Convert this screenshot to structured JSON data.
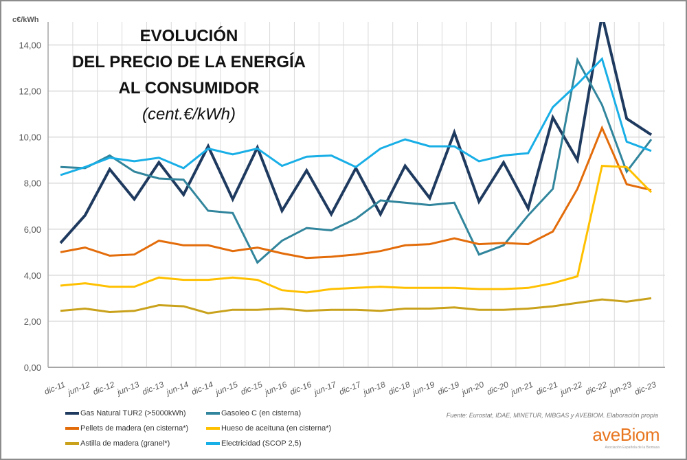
{
  "title": {
    "line1": "EVOLUCIÓN",
    "line2": "DEL PRECIO DE LA ENERGÍA",
    "line3": "AL CONSUMIDOR",
    "subtitle": "(cent.€/kWh)"
  },
  "source": "Fuente: Eurostat,  IDAE, MINETUR, MIBGAS y AVEBIOM. Elaboración propia",
  "logo": {
    "text": "aveBiom",
    "tagline": "Asociación Española de la Biomasa"
  },
  "chart_data": {
    "type": "line",
    "title": "EVOLUCIÓN DEL PRECIO DE LA ENERGÍA AL CONSUMIDOR (cent.€/kWh)",
    "ylabel": "c€/kWh",
    "xlabel": "",
    "ylim": [
      0,
      15
    ],
    "yticks": [
      "0,00",
      "2,00",
      "4,00",
      "6,00",
      "8,00",
      "10,00",
      "12,00",
      "14,00"
    ],
    "ytick_values": [
      0,
      2,
      4,
      6,
      8,
      10,
      12,
      14
    ],
    "grid": true,
    "legend_position": "bottom",
    "categories": [
      "dic-11",
      "jun-12",
      "dic-12",
      "jun-13",
      "dic-13",
      "jun-14",
      "dic-14",
      "jun-15",
      "dic-15",
      "jun-16",
      "dic-16",
      "jun-17",
      "dic-17",
      "jun-18",
      "dic-18",
      "jun-19",
      "dic-19",
      "jun-20",
      "dic-20",
      "jun-21",
      "dic-21",
      "jun-22",
      "dic-22",
      "jun-23",
      "dic-23"
    ],
    "series": [
      {
        "name": "Gas Natural TUR2 (>5000kWh)",
        "color": "#1f3a5f",
        "width": 4,
        "values": [
          5.4,
          6.6,
          8.6,
          7.3,
          8.9,
          7.5,
          9.6,
          7.3,
          9.55,
          6.8,
          8.55,
          6.65,
          8.65,
          6.65,
          8.75,
          7.35,
          10.2,
          7.2,
          8.9,
          6.9,
          10.85,
          9.0,
          15.3,
          10.8,
          10.1
        ]
      },
      {
        "name": "Gasoleo C  (en cisterna)",
        "color": "#31859c",
        "width": 3,
        "values": [
          8.7,
          8.65,
          9.2,
          8.5,
          8.2,
          8.15,
          6.8,
          6.7,
          4.55,
          5.5,
          6.05,
          5.95,
          6.45,
          7.25,
          7.15,
          7.05,
          7.15,
          4.9,
          5.3,
          6.6,
          7.75,
          13.35,
          11.4,
          8.5,
          9.9
        ]
      },
      {
        "name": "Pellets de madera (en cisterna*)",
        "color": "#e36c0a",
        "width": 3,
        "values": [
          5.0,
          5.2,
          4.85,
          4.9,
          5.5,
          5.3,
          5.3,
          5.05,
          5.2,
          4.95,
          4.75,
          4.8,
          4.9,
          5.05,
          5.3,
          5.35,
          5.6,
          5.35,
          5.4,
          5.35,
          5.9,
          7.75,
          10.4,
          7.95,
          7.7
        ]
      },
      {
        "name": "Hueso de aceituna (en cisterna*)",
        "color": "#ffc000",
        "width": 3,
        "values": [
          3.55,
          3.65,
          3.5,
          3.5,
          3.9,
          3.8,
          3.8,
          3.9,
          3.8,
          3.35,
          3.25,
          3.4,
          3.45,
          3.5,
          3.45,
          3.45,
          3.45,
          3.4,
          3.4,
          3.45,
          3.65,
          3.95,
          8.75,
          8.7,
          7.6
        ]
      },
      {
        "name": "Astilla de madera (granel*)",
        "color": "#c9a11a",
        "width": 3,
        "values": [
          2.45,
          2.55,
          2.4,
          2.45,
          2.7,
          2.65,
          2.35,
          2.5,
          2.5,
          2.55,
          2.45,
          2.5,
          2.5,
          2.45,
          2.55,
          2.55,
          2.6,
          2.5,
          2.5,
          2.55,
          2.65,
          2.8,
          2.95,
          2.85,
          3.0
        ]
      },
      {
        "name": "Electricidad (SCOP 2,5)",
        "color": "#18aee6",
        "width": 3,
        "values": [
          8.35,
          8.7,
          9.1,
          8.95,
          9.1,
          8.65,
          9.5,
          9.25,
          9.5,
          8.75,
          9.15,
          9.2,
          8.7,
          9.5,
          9.9,
          9.6,
          9.6,
          8.95,
          9.2,
          9.3,
          11.3,
          12.3,
          13.4,
          9.8,
          9.4
        ]
      }
    ]
  }
}
